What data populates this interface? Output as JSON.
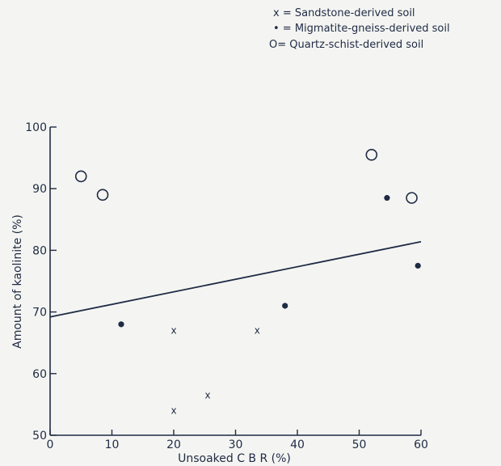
{
  "chart_data": {
    "type": "scatter",
    "xlabel": "Unsoaked  C B R  (%)",
    "ylabel": "Amount of kaolinite (%)",
    "xlim": [
      0,
      60
    ],
    "ylim": [
      50,
      100
    ],
    "xticks": [
      "0",
      "10",
      "20",
      "30",
      "40",
      "50",
      "60"
    ],
    "yticks": [
      "50",
      "60",
      "70",
      "80",
      "90",
      "100"
    ],
    "grid": false,
    "legend_position": "top-right",
    "series": [
      {
        "name": "Sandstone-derived soil",
        "legend_label": "x = Sandstone-derived soil",
        "marker": "x",
        "points": [
          [
            20,
            67
          ],
          [
            20,
            54
          ],
          [
            25.5,
            56.5
          ],
          [
            33.5,
            67
          ]
        ]
      },
      {
        "name": "Migmatite-gneiss-derived soil",
        "legend_label": "• = Migmatite-gneiss-derived soil",
        "marker": "dot",
        "points": [
          [
            11.5,
            68
          ],
          [
            38,
            71
          ],
          [
            54.5,
            88.5
          ],
          [
            59.5,
            77.5
          ]
        ]
      },
      {
        "name": "Quartz-schist-derived soil",
        "legend_label": "O= Quartz-schist-derived soil",
        "marker": "circle",
        "points": [
          [
            5,
            92
          ],
          [
            8.5,
            89
          ],
          [
            52,
            95.5
          ],
          [
            58.5,
            88.5
          ]
        ]
      }
    ],
    "trendline": {
      "points": [
        [
          0,
          69.2
        ],
        [
          60,
          81.4
        ]
      ]
    },
    "colors": {
      "ink": "#1f2a44",
      "paper": "#f4f5f2"
    }
  }
}
